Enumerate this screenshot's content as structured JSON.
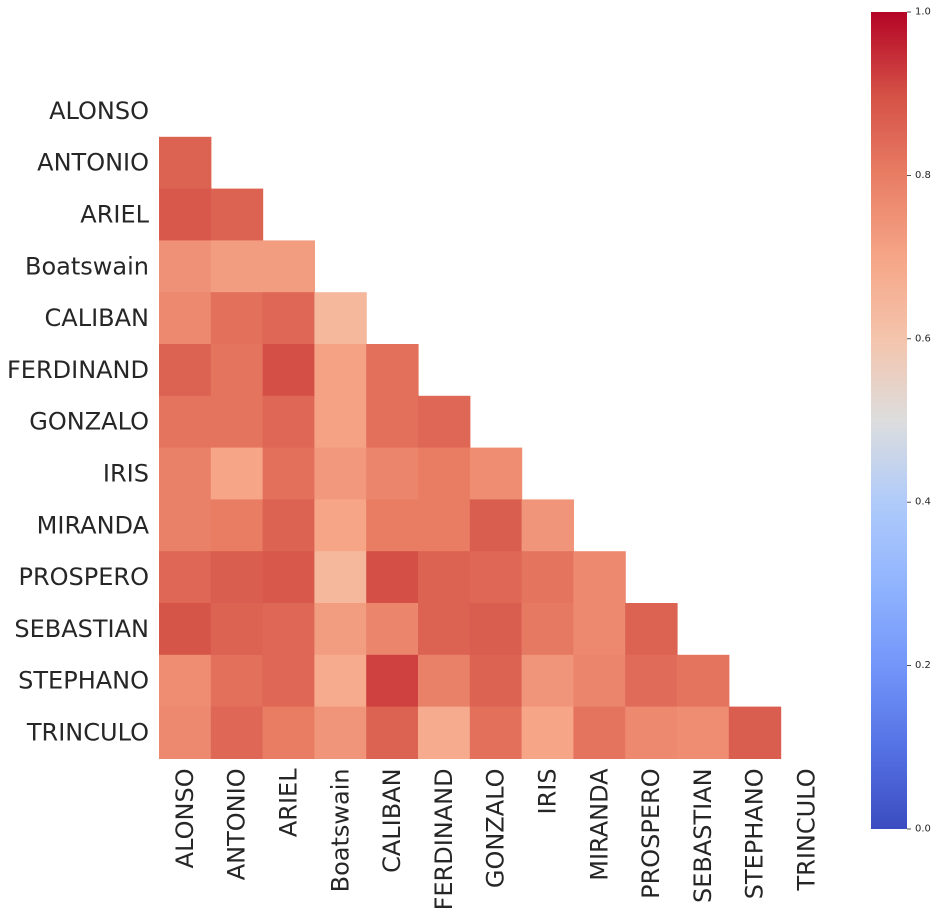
{
  "chart_data": {
    "type": "heatmap",
    "title": "",
    "xlabel": "",
    "ylabel": "",
    "mask": "upper-triangle-including-diagonal",
    "colormap": "coolwarm",
    "vmin": 0,
    "vmax": 1,
    "row_labels": [
      "ALONSO",
      "ANTONIO",
      "ARIEL",
      "Boatswain",
      "CALIBAN",
      "FERDINAND",
      "GONZALO",
      "IRIS",
      "MIRANDA",
      "PROSPERO",
      "SEBASTIAN",
      "STEPHANO",
      "TRINCULO"
    ],
    "col_labels": [
      "ALONSO",
      "ANTONIO",
      "ARIEL",
      "Boatswain",
      "CALIBAN",
      "FERDINAND",
      "GONZALO",
      "IRIS",
      "MIRANDA",
      "PROSPERO",
      "SEBASTIAN",
      "STEPHANO",
      "TRINCULO"
    ],
    "values": [
      [
        null,
        null,
        null,
        null,
        null,
        null,
        null,
        null,
        null,
        null,
        null,
        null,
        null
      ],
      [
        0.86,
        null,
        null,
        null,
        null,
        null,
        null,
        null,
        null,
        null,
        null,
        null,
        null
      ],
      [
        0.88,
        0.86,
        null,
        null,
        null,
        null,
        null,
        null,
        null,
        null,
        null,
        null,
        null
      ],
      [
        0.75,
        0.72,
        0.72,
        null,
        null,
        null,
        null,
        null,
        null,
        null,
        null,
        null,
        null
      ],
      [
        0.77,
        0.83,
        0.85,
        0.64,
        null,
        null,
        null,
        null,
        null,
        null,
        null,
        null,
        null
      ],
      [
        0.86,
        0.82,
        0.9,
        0.71,
        0.83,
        null,
        null,
        null,
        null,
        null,
        null,
        null,
        null
      ],
      [
        0.82,
        0.82,
        0.85,
        0.71,
        0.83,
        0.85,
        null,
        null,
        null,
        null,
        null,
        null,
        null
      ],
      [
        0.79,
        0.7,
        0.83,
        0.73,
        0.78,
        0.8,
        0.76,
        null,
        null,
        null,
        null,
        null,
        null
      ],
      [
        0.79,
        0.8,
        0.86,
        0.7,
        0.8,
        0.8,
        0.87,
        0.74,
        null,
        null,
        null,
        null,
        null
      ],
      [
        0.85,
        0.87,
        0.88,
        0.64,
        0.9,
        0.86,
        0.85,
        0.82,
        0.77,
        null,
        null,
        null,
        null
      ],
      [
        0.89,
        0.86,
        0.85,
        0.72,
        0.78,
        0.86,
        0.87,
        0.81,
        0.77,
        0.86,
        null,
        null,
        null
      ],
      [
        0.76,
        0.83,
        0.85,
        0.68,
        0.92,
        0.79,
        0.86,
        0.74,
        0.78,
        0.84,
        0.82,
        null,
        null
      ],
      [
        0.77,
        0.85,
        0.8,
        0.74,
        0.86,
        0.68,
        0.83,
        0.7,
        0.82,
        0.77,
        0.76,
        0.87,
        null
      ]
    ],
    "colorbar": {
      "ticks": [
        0.0,
        0.2,
        0.4,
        0.6,
        0.8,
        1.0
      ],
      "tick_labels": [
        "0.0",
        "0.2",
        "0.4",
        "0.6",
        "0.8",
        "1.0"
      ]
    }
  }
}
